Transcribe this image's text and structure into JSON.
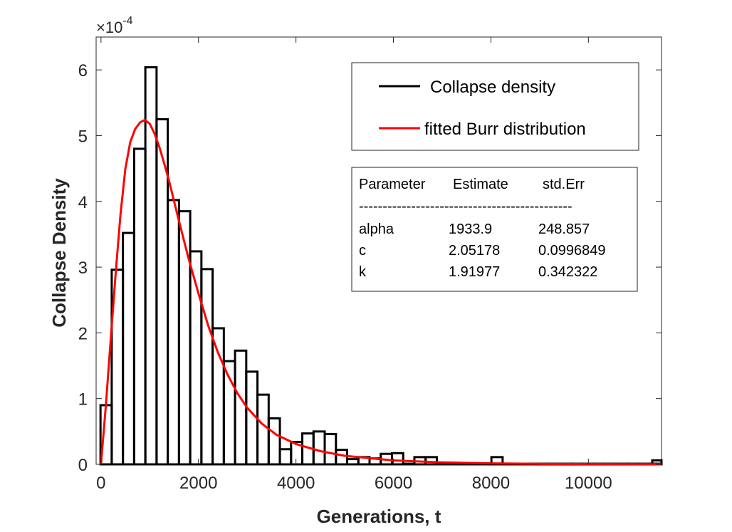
{
  "chart_data": {
    "type": "histogram",
    "xlabel": "Generations, t",
    "ylabel": "Collapse Density",
    "y_exponent_label": "×10",
    "y_exponent_power": "-4",
    "xlim": [
      -100,
      11500
    ],
    "ylim": [
      0,
      0.00065
    ],
    "x_ticks": [
      0,
      2000,
      4000,
      6000,
      8000,
      10000
    ],
    "x_tick_labels": [
      "0",
      "2000",
      "4000",
      "6000",
      "8000",
      "10000"
    ],
    "y_ticks": [
      0,
      0.0001,
      0.0002,
      0.0003,
      0.0004,
      0.0005,
      0.0006
    ],
    "y_tick_labels": [
      "0",
      "1",
      "2",
      "3",
      "4",
      "5",
      "6"
    ],
    "grid": false,
    "legend_placement": "top-right",
    "bin_width": 230,
    "bin_start": -10,
    "series": [
      {
        "name": "Collapse density",
        "kind": "histogram-stairs",
        "color": "#000000",
        "values": [
          9e-05,
          0.000296,
          0.000352,
          0.00048,
          0.000604,
          0.000525,
          0.000402,
          0.000385,
          0.000324,
          0.000297,
          0.000207,
          0.000157,
          0.000173,
          0.000141,
          0.000106,
          7e-05,
          2.3e-05,
          3.4e-05,
          4.7e-05,
          5e-05,
          4.6e-05,
          2.2e-05,
          8e-06,
          1.1e-05,
          9e-06,
          1.6e-05,
          1.7e-05,
          1e-06,
          1.1e-05,
          1.1e-05,
          1e-06,
          1e-06,
          1e-06,
          1e-06,
          1e-06,
          1e-06,
          1e-06,
          1e-06,
          1e-06,
          1e-06,
          1e-06,
          1e-06,
          1e-06,
          1e-06,
          1e-06,
          1e-06,
          1e-06,
          1e-06,
          1e-06,
          1e-06
        ],
        "extra_bins": [
          {
            "x0": 8010,
            "x1": 8240,
            "value": 1.1e-05
          },
          {
            "x0": 11310,
            "x1": 11500,
            "value": 6e-06
          }
        ]
      },
      {
        "name": "fitted Burr distribution",
        "kind": "line",
        "color": "#ff0000",
        "x": [
          0,
          100,
          200,
          300,
          400,
          500,
          600,
          700,
          800,
          900,
          1000,
          1100,
          1200,
          1300,
          1400,
          1500,
          1600,
          1800,
          2000,
          2200,
          2400,
          2600,
          2800,
          3000,
          3300,
          3600,
          4000,
          4500,
          5000,
          6000,
          7000,
          8000,
          9000,
          10000,
          11500
        ],
        "y": [
          0,
          9e-05,
          0.00019,
          0.00029,
          0.00038,
          0.00045,
          0.00049,
          0.00051,
          0.00052,
          0.000524,
          0.000518,
          0.000503,
          0.000482,
          0.000457,
          0.00043,
          0.0004,
          0.00037,
          0.000312,
          0.00026,
          0.000211,
          0.00017,
          0.000136,
          0.000108,
          8.6e-05,
          6.2e-05,
          4.5e-05,
          3.1e-05,
          2e-05,
          1.3e-05,
          6e-06,
          3e-06,
          1.5e-06,
          8e-07,
          4e-07,
          1e-07
        ]
      }
    ]
  },
  "legend": {
    "items": [
      {
        "label": "Collapse density",
        "color": "#000000"
      },
      {
        "label": "fitted Burr distribution",
        "color": "#ff0000"
      }
    ]
  },
  "param_table": {
    "headers": [
      "Parameter",
      "Estimate",
      "std.Err"
    ],
    "separator": "---------------------------------------------",
    "rows": [
      [
        "alpha",
        "1933.9",
        "248.857"
      ],
      [
        "c",
        "2.05178",
        "0.0996849"
      ],
      [
        "k",
        "1.91977",
        "0.342322"
      ]
    ]
  }
}
